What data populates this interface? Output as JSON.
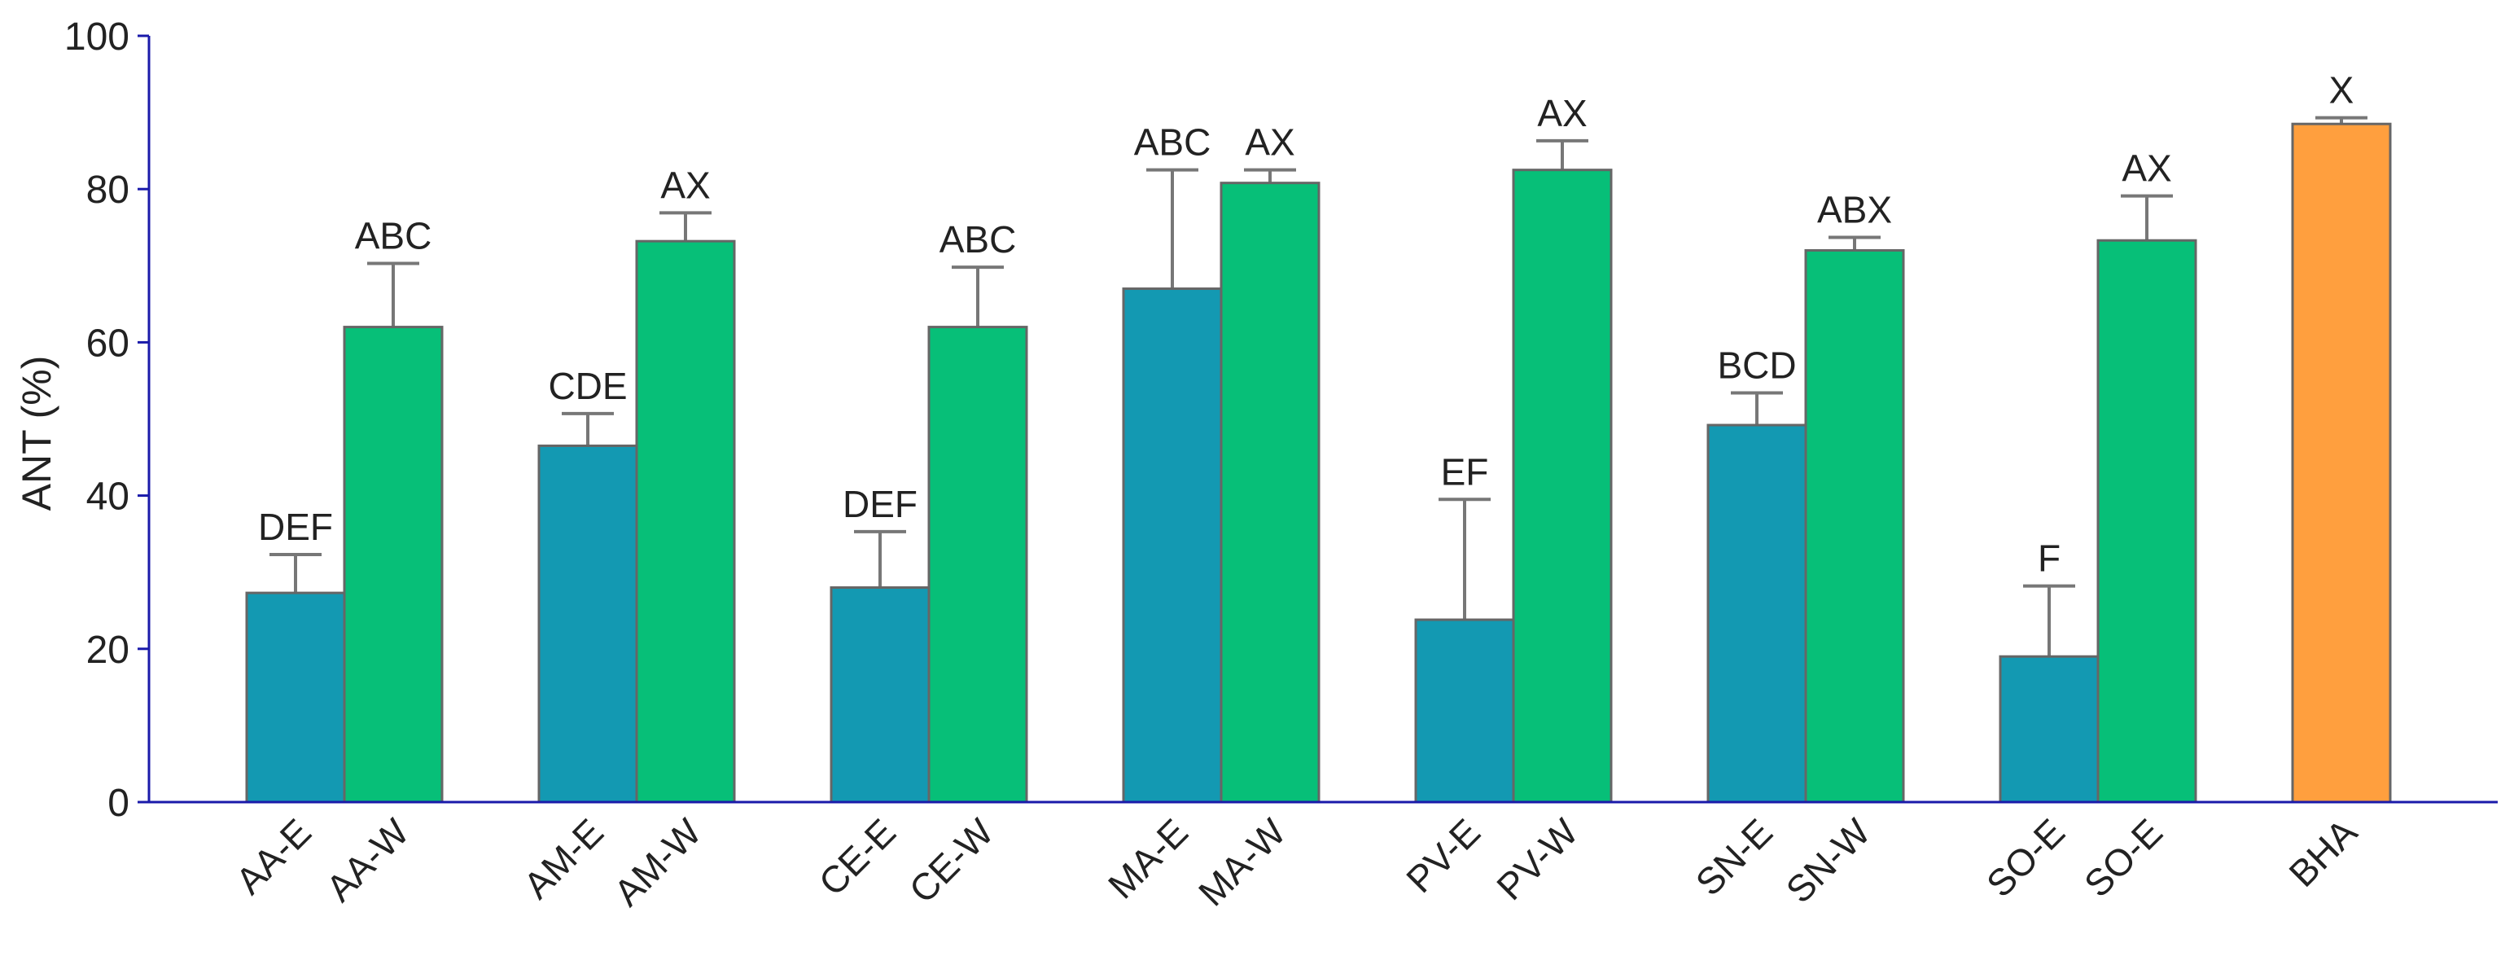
{
  "chart_data": {
    "type": "bar",
    "title": "",
    "xlabel": "",
    "ylabel": "ANT (%)",
    "ylim": [
      0,
      100
    ],
    "yticks": [
      0,
      20,
      40,
      60,
      80,
      100
    ],
    "grid": false,
    "legend": "none",
    "colors": {
      "ethanol": "#1399B2",
      "water": "#07BF78",
      "standard": "#FF9F3E",
      "axis": "#1A1AAA",
      "bar_edge": "#666666",
      "error_bar": "#777777"
    },
    "bars": [
      {
        "label": "AA-E",
        "value": 27.3,
        "error": 5.0,
        "sig": "DEF",
        "series": "ethanol",
        "group": 0
      },
      {
        "label": "AA-W",
        "value": 62.0,
        "error": 8.3,
        "sig": "ABC",
        "series": "water",
        "group": 0
      },
      {
        "label": "AM-E",
        "value": 46.5,
        "error": 4.2,
        "sig": "CDE",
        "series": "ethanol",
        "group": 1
      },
      {
        "label": "AM-W",
        "value": 73.2,
        "error": 3.7,
        "sig": "AX",
        "series": "water",
        "group": 1
      },
      {
        "label": "CE-E",
        "value": 28.0,
        "error": 7.3,
        "sig": "DEF",
        "series": "ethanol",
        "group": 2
      },
      {
        "label": "CE-W",
        "value": 62.0,
        "error": 7.8,
        "sig": "ABC",
        "series": "water",
        "group": 2
      },
      {
        "label": "MA-E",
        "value": 67.0,
        "error": 15.5,
        "sig": "ABC",
        "series": "ethanol",
        "group": 3
      },
      {
        "label": "MA-W",
        "value": 80.8,
        "error": 1.7,
        "sig": "AX",
        "series": "water",
        "group": 3
      },
      {
        "label": "PV-E",
        "value": 23.8,
        "error": 15.7,
        "sig": "EF",
        "series": "ethanol",
        "group": 4
      },
      {
        "label": "PV-W",
        "value": 82.5,
        "error": 3.8,
        "sig": "AX",
        "series": "water",
        "group": 4
      },
      {
        "label": "SN-E",
        "value": 49.2,
        "error": 4.2,
        "sig": "BCD",
        "series": "ethanol",
        "group": 5
      },
      {
        "label": "SN-W",
        "value": 72.0,
        "error": 1.7,
        "sig": "ABX",
        "series": "water",
        "group": 5
      },
      {
        "label": "SO-E",
        "value": 19.0,
        "error": 9.2,
        "sig": "F",
        "series": "ethanol",
        "group": 6
      },
      {
        "label": "SO-E",
        "value": 73.3,
        "error": 5.8,
        "sig": "AX",
        "series": "water",
        "group": 6
      },
      {
        "label": "BHA",
        "value": 88.5,
        "error": 0.8,
        "sig": "X",
        "series": "standard",
        "group": 7
      }
    ]
  }
}
